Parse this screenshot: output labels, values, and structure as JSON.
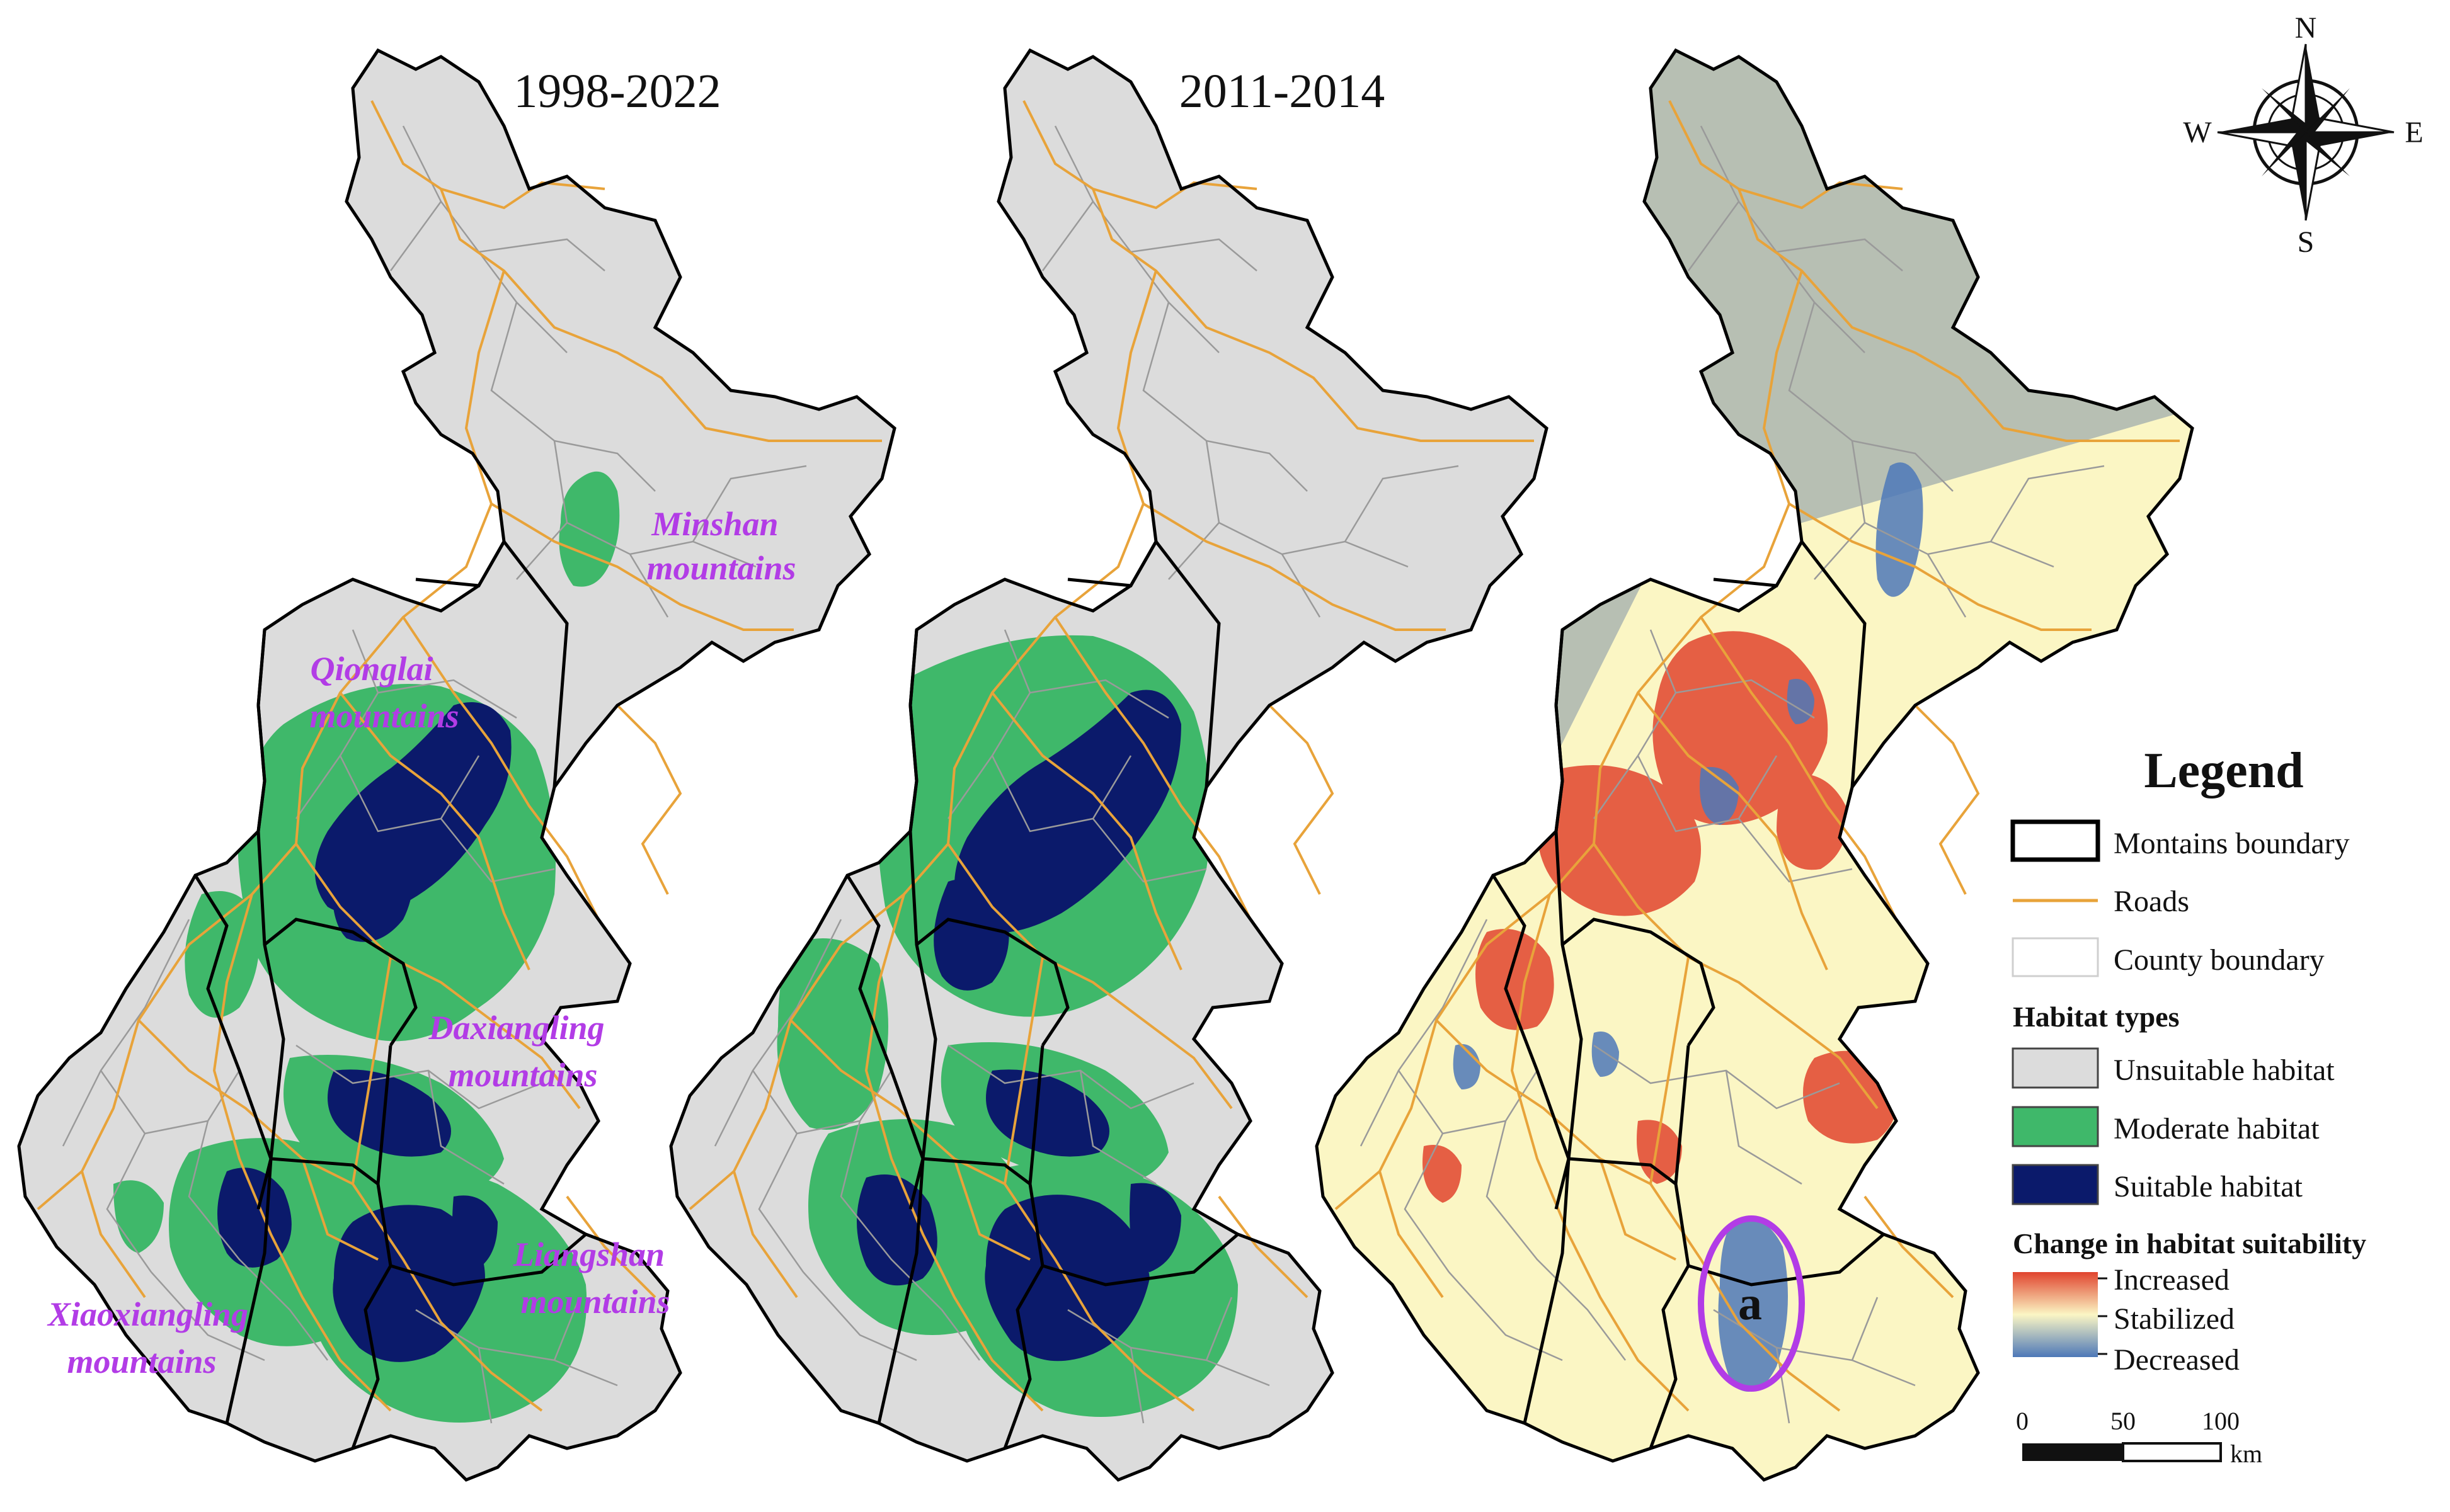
{
  "panels": [
    {
      "title": "1998-2022"
    },
    {
      "title": "2011-2014"
    },
    {
      "title": ""
    }
  ],
  "mountain_labels": [
    {
      "line1": "Minshan",
      "line2": "mountains"
    },
    {
      "line1": "Qionglai",
      "line2": "mountains"
    },
    {
      "line1": "Daxiangling",
      "line2": "mountains"
    },
    {
      "line1": "Liangshan",
      "line2": "mountains"
    },
    {
      "line1": "Xiaoxiangling",
      "line2": "mountains"
    }
  ],
  "annotation": {
    "label": "a"
  },
  "compass": {
    "n": "N",
    "s": "S",
    "e": "E",
    "w": "W"
  },
  "legend": {
    "title": "Legend",
    "boundary_label": "Montains boundary",
    "roads_label": "Roads",
    "county_label": "County boundary",
    "habitat_heading": "Habitat types",
    "unsuitable_label": "Unsuitable habitat",
    "moderate_label": "Moderate habitat",
    "suitable_label": "Suitable habitat",
    "change_heading": "Change in habitat suitability",
    "increased_label": "Increased",
    "stabilized_label": "Stabilized",
    "decreased_label": "Decreased"
  },
  "scale_bar": {
    "t0": "0",
    "t1": "50",
    "t2": "100",
    "unit": "km"
  },
  "colors": {
    "unsuitable": "#dcdcdc",
    "moderate": "#3fb86a",
    "suitable": "#0b1a6b",
    "road": "#e8a33a",
    "county": "#9a9a9a",
    "boundary": "#000000",
    "increased": "#e0442e",
    "stabilized": "#fbf6c4",
    "decreased": "#4d78b8",
    "annotation_ring": "#b23ce6",
    "label_text": "#b23ce6"
  }
}
